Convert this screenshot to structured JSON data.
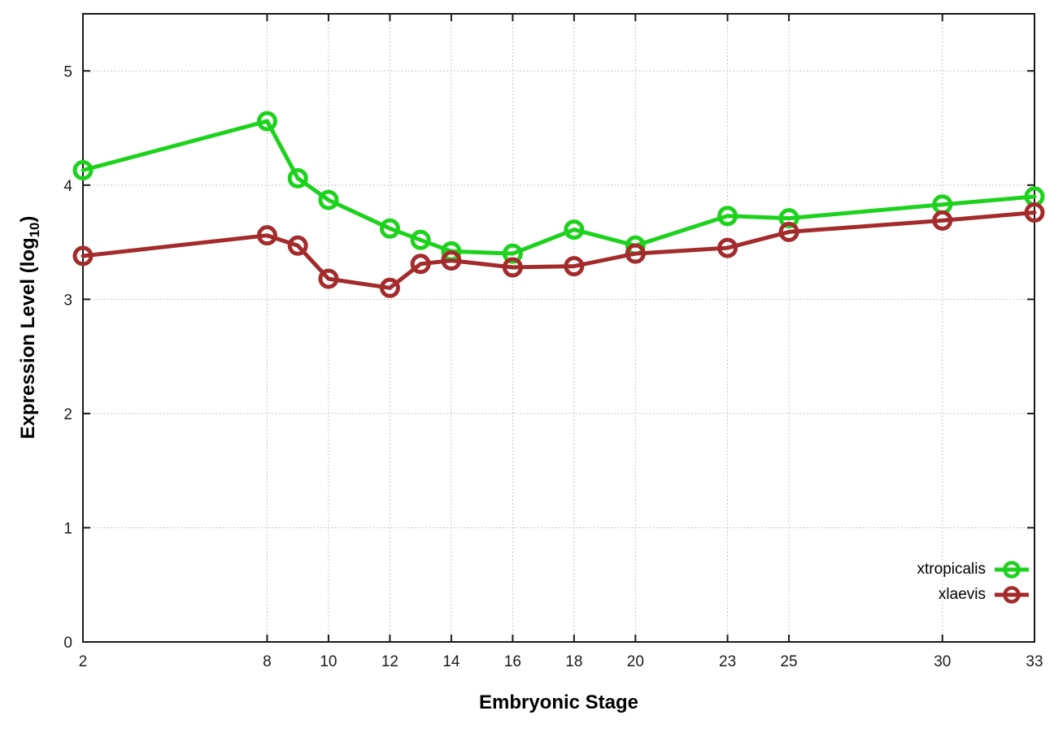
{
  "chart_data": {
    "type": "line",
    "title": "",
    "xlabel": "Embryonic Stage",
    "ylabel": "Expression Level (log10)",
    "ylabel_parts": {
      "main": "Expression Level (log",
      "sub": "10",
      "close": ")"
    },
    "x": [
      2,
      8,
      9,
      10,
      12,
      13,
      14,
      16,
      18,
      20,
      23,
      25,
      30,
      33
    ],
    "series": [
      {
        "name": "xtropicalis",
        "color": "#1dd21d",
        "values": [
          4.13,
          4.56,
          4.06,
          3.87,
          3.62,
          3.52,
          3.42,
          3.4,
          3.61,
          3.47,
          3.73,
          3.71,
          3.83,
          3.9
        ]
      },
      {
        "name": "xlaevis",
        "color": "#a32b2b",
        "values": [
          3.38,
          3.56,
          3.47,
          3.18,
          3.1,
          3.31,
          3.34,
          3.28,
          3.29,
          3.4,
          3.45,
          3.59,
          3.69,
          3.76
        ]
      }
    ],
    "xticks": [
      2,
      8,
      10,
      12,
      14,
      16,
      18,
      20,
      23,
      25,
      30,
      33
    ],
    "yticks": [
      0,
      1,
      2,
      3,
      4,
      5
    ],
    "xlim": [
      2,
      33
    ],
    "ylim": [
      0,
      5.5
    ],
    "grid": true,
    "grid_color": "#b5b5b5",
    "border_color": "#1a1a1a",
    "tick_label_color": "#1c1c1c",
    "legend_position": "inside-right",
    "marker": "open-circle"
  }
}
